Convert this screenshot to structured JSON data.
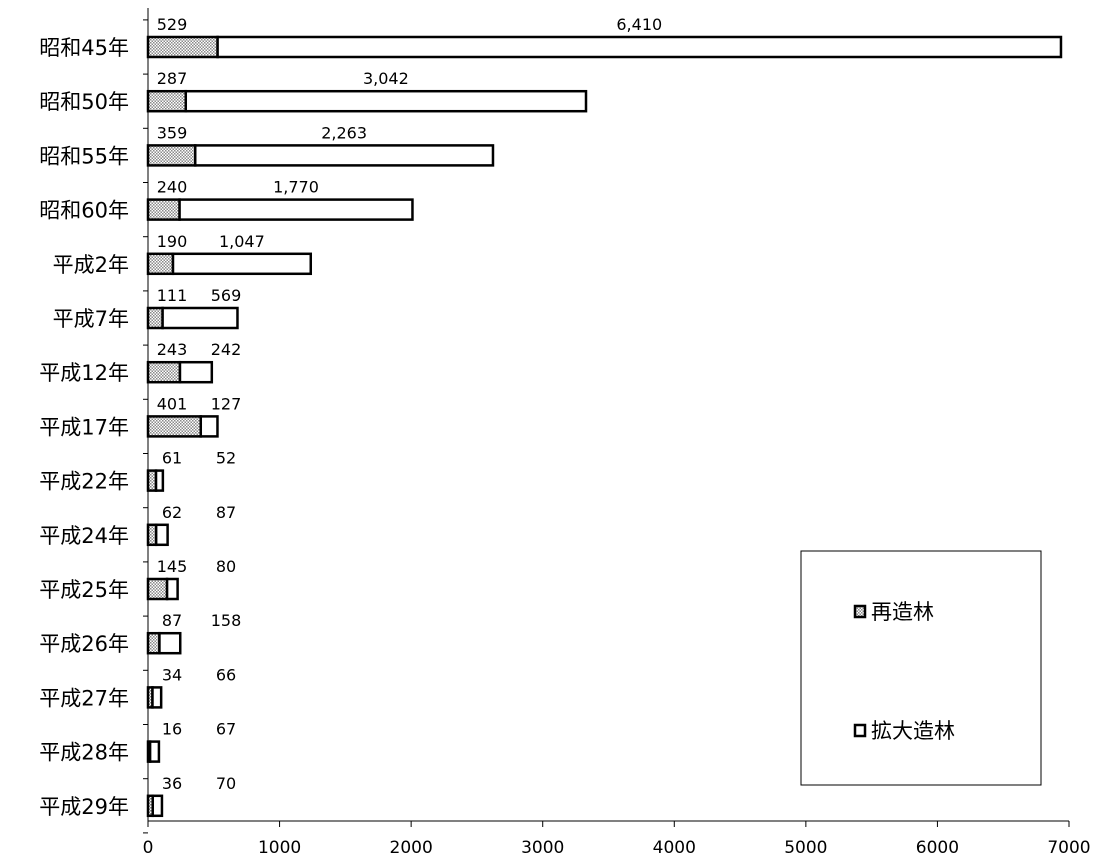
{
  "chart_data": {
    "type": "bar",
    "orientation": "horizontal",
    "stacked": true,
    "categories": [
      "昭和45年",
      "昭和50年",
      "昭和55年",
      "昭和60年",
      "平成2年",
      "平成7年",
      "平成12年",
      "平成17年",
      "平成22年",
      "平成24年",
      "平成25年",
      "平成26年",
      "平成27年",
      "平成28年",
      "平成29年"
    ],
    "series": [
      {
        "name": "再造林",
        "values": [
          529,
          287,
          359,
          240,
          190,
          111,
          243,
          401,
          61,
          62,
          145,
          87,
          34,
          16,
          36
        ],
        "labels": [
          "529",
          "287",
          "359",
          "240",
          "190",
          "111",
          "243",
          "401",
          "61",
          "62",
          "145",
          "87",
          "34",
          "16",
          "36"
        ],
        "fill": "dotted-gray"
      },
      {
        "name": "拡大造林",
        "values": [
          6410,
          3042,
          2263,
          1770,
          1047,
          569,
          242,
          127,
          52,
          87,
          80,
          158,
          66,
          67,
          70
        ],
        "labels": [
          "6,410",
          "3,042",
          "2,263",
          "1,770",
          "1,047",
          "569",
          "242",
          "127",
          "52",
          "87",
          "80",
          "158",
          "66",
          "67",
          "70"
        ],
        "fill": "white"
      }
    ],
    "xlim": [
      0,
      7000
    ],
    "xticks": [
      "0",
      "1000",
      "2000",
      "3000",
      "4000",
      "5000",
      "6000",
      "7000"
    ],
    "grid": false,
    "legend_position": "bottom-right",
    "colors": {
      "bar_stroke": "#000000",
      "dot_fill": "#9a9a9a",
      "bar_fill": "#ffffff"
    }
  }
}
